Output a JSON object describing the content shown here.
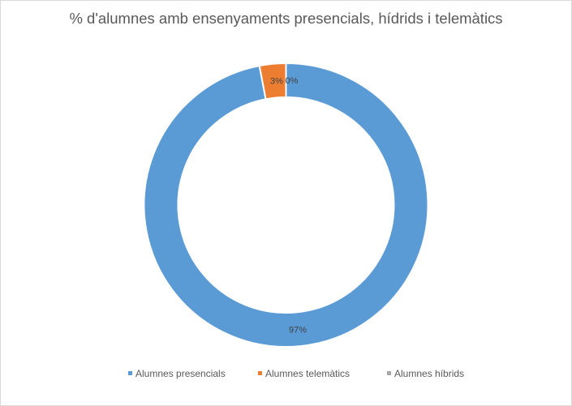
{
  "chart_data": {
    "type": "pie",
    "variant": "doughnut",
    "title": "% d'alumnes amb ensenyaments presencials, hídrids i telemàtics",
    "series": [
      {
        "name": "Alumnes presencials",
        "value": 97,
        "label": "97%",
        "color": "#5b9bd5"
      },
      {
        "name": "Alumnes telemàtics",
        "value": 3,
        "label": "3%",
        "color": "#ed7d31"
      },
      {
        "name": "Alumnes híbrids",
        "value": 0,
        "label": "0%",
        "color": "#a5a5a5"
      }
    ],
    "legend_position": "bottom"
  }
}
